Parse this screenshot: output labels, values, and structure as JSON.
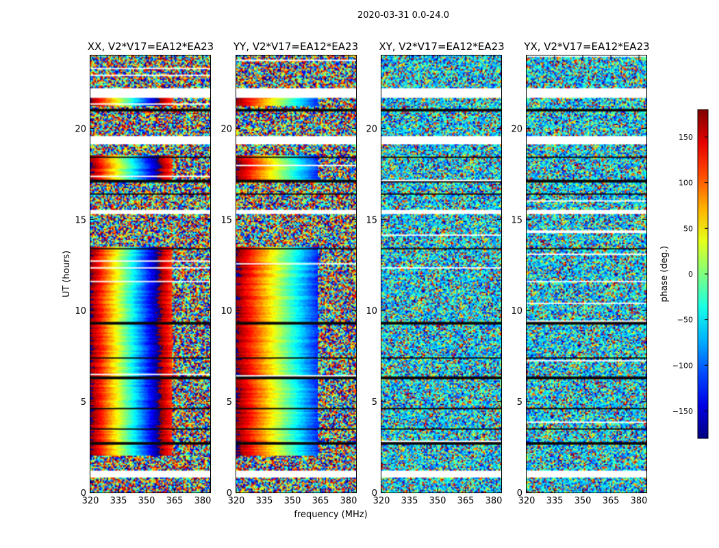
{
  "figure_title": "2020-03-31 0.0-24.0",
  "chart_data": {
    "type": "heatmap",
    "suptitle": "2020-03-31 0.0-24.0",
    "xlabel": "frequency (MHz)",
    "ylabel": "UT (hours)",
    "xlim": [
      320,
      384
    ],
    "ylim": [
      0,
      24
    ],
    "xticks": [
      320,
      335,
      350,
      365,
      380
    ],
    "yticks": [
      0,
      5,
      10,
      15,
      20
    ],
    "colorbar": {
      "label": "phase (deg.)",
      "range": [
        -180,
        180
      ],
      "ticks": [
        150,
        100,
        50,
        0,
        -50,
        -100,
        -150
      ],
      "tick_labels": [
        "150",
        "100",
        "50",
        "0",
        "−50",
        "−100",
        "−150"
      ],
      "colormap": "jet",
      "colors": [
        "#00007f",
        "#0000ff",
        "#007fff",
        "#00ffff",
        "#7fff7f",
        "#ffff00",
        "#ff7f00",
        "#ff0000",
        "#7f0000"
      ]
    },
    "panels": [
      {
        "title": "XX, V2*V17=EA12*EA23",
        "polarization": "XX",
        "structure": "coherent phase slope from ~320 to ~364 MHz, noise above",
        "coherent": true,
        "phase_center_mhz": 335
      },
      {
        "title": "YY, V2*V17=EA12*EA23",
        "polarization": "YY",
        "structure": "coherent phase slope from ~320 to ~364 MHz, noise above",
        "coherent": true,
        "phase_center_mhz": 349
      },
      {
        "title": "XY, V2*V17=EA12*EA23",
        "polarization": "XY",
        "structure": "noise-like phase",
        "coherent": false
      },
      {
        "title": "YX, V2*V17=EA12*EA23",
        "polarization": "YX",
        "structure": "noise-like phase",
        "coherent": false
      }
    ],
    "flagged_ut_bands_hours": [
      [
        0.8,
        1.2
      ],
      [
        19.1,
        19.6
      ],
      [
        21.7,
        22.2
      ],
      [
        15.3,
        15.5
      ]
    ],
    "dark_separator_ut_hours": [
      2.7,
      3.5,
      4.6,
      6.3,
      7.4,
      9.3,
      13.4,
      16.4,
      17.1,
      18.4,
      21.0
    ],
    "bright_ut_bands_hours": [
      [
        1.0,
        1.2
      ],
      [
        18.0,
        18.1
      ]
    ]
  }
}
